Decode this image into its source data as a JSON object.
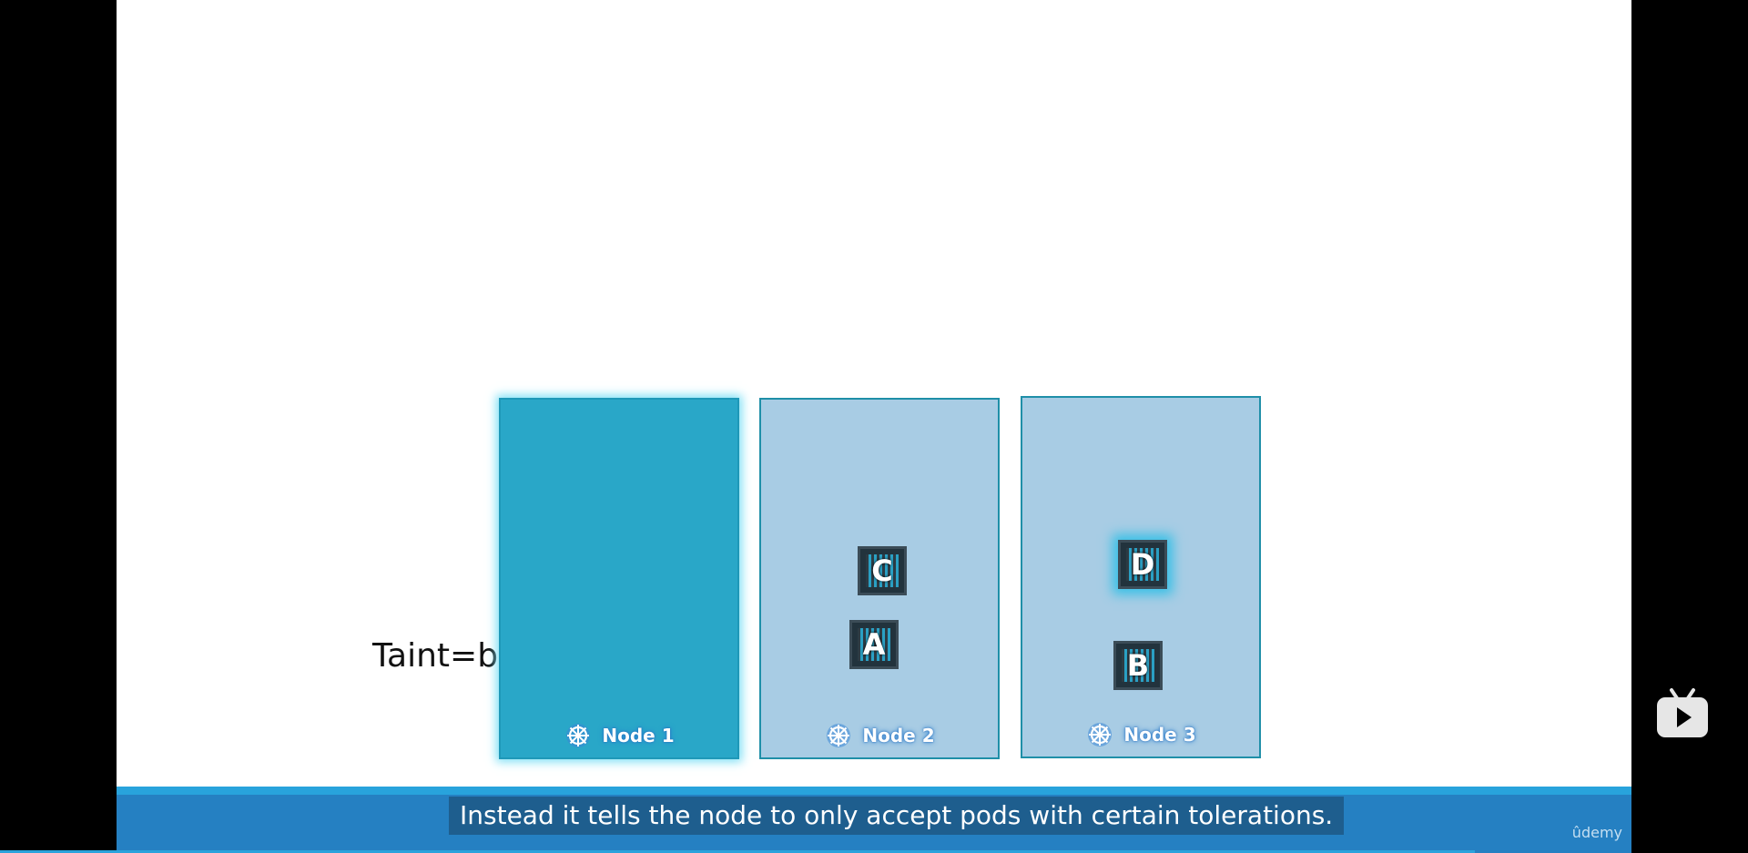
{
  "slide": {
    "taint_label": "Taint=blue",
    "nodes": [
      {
        "label": "Node 1",
        "pods": []
      },
      {
        "label": "Node 2",
        "pods": [
          "C",
          "A"
        ]
      },
      {
        "label": "Node 3",
        "pods": [
          "D",
          "B"
        ]
      }
    ]
  },
  "caption": "Instead it tells the node to only accept pods with certain tolerations.",
  "watermark": "ûdemy",
  "icons": {
    "node": "kubernetes-wheel-icon",
    "player": "bilibili-tv-icon"
  },
  "colors": {
    "tainted_node": "#29a7c8",
    "node": "#a8cce4",
    "caption_bar": "#2580c2"
  }
}
